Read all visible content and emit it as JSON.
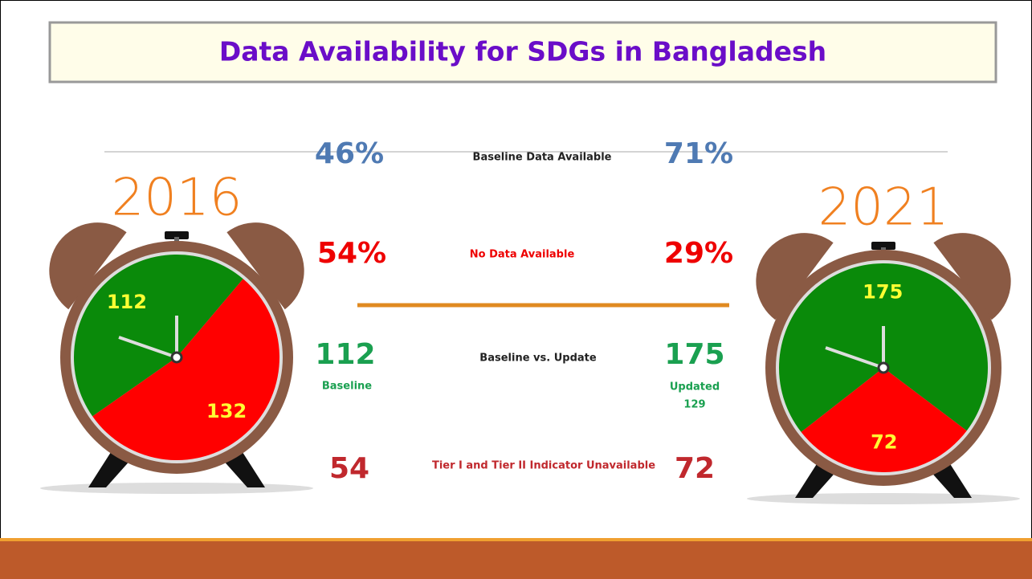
{
  "title": "Data Availability for SDGs in Bangladesh",
  "rows": [
    {
      "left": "46%",
      "label": "Baseline Data Available",
      "right": "71%"
    },
    {
      "left": "54%",
      "label": "No Data Available",
      "right": "29%"
    },
    {
      "left": "112",
      "left_note": "Baseline",
      "label": "Baseline vs. Update",
      "right": "175",
      "right_note": "Updated",
      "right_note2": "129"
    },
    {
      "left": "54",
      "label": "Tier I and Tier II Indicator Unavailable",
      "right": "72"
    }
  ],
  "chart_data": [
    {
      "type": "pie",
      "title": "2016",
      "series": [
        {
          "name": null,
          "values": [
            112,
            132
          ],
          "colors": [
            "#0a8a0a",
            "#ff0000"
          ]
        }
      ]
    },
    {
      "type": "pie",
      "title": "2021",
      "series": [
        {
          "name": null,
          "values": [
            175,
            72
          ],
          "colors": [
            "#0a8a0a",
            "#ff0000"
          ]
        }
      ]
    }
  ]
}
